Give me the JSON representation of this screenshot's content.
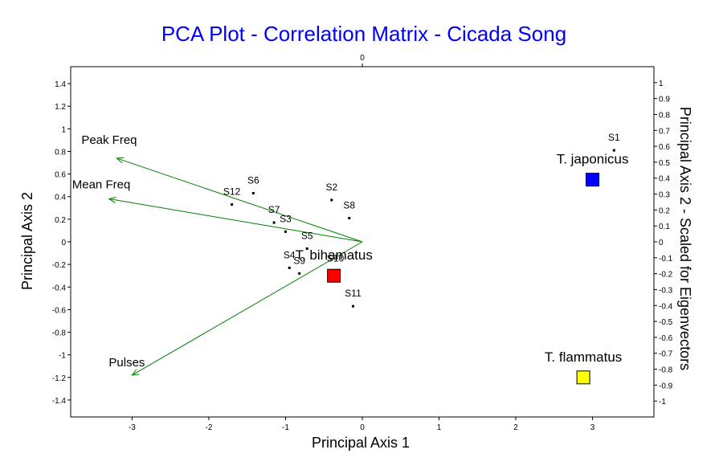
{
  "chart_data": {
    "type": "scatter",
    "title": "PCA Plot - Correlation Matrix - Cicada Song",
    "xlabel": "Principal Axis 1",
    "ylabel": "Principal Axis 2",
    "y2label": "Principal Axis 2 - Scaled for Eigenvectors",
    "xlim": [
      -3.8,
      3.8
    ],
    "ylim": [
      -1.55,
      1.55
    ],
    "y2lim": [
      -1.1,
      1.1
    ],
    "x_ticks": [
      "-3",
      "-2",
      "-1",
      "0",
      "1",
      "2",
      "3"
    ],
    "x_tick_values": [
      -3,
      -2,
      -1,
      0,
      1,
      2,
      3
    ],
    "top_ticks": [
      "0"
    ],
    "top_tick_values": [
      0
    ],
    "y_ticks": [
      "-1.4",
      "-1.2",
      "-1",
      "-0.8",
      "-0.6",
      "-0.4",
      "-0.2",
      "0",
      "0.2",
      "0.4",
      "0.6",
      "0.8",
      "1",
      "1.2",
      "1.4"
    ],
    "y_tick_values": [
      -1.4,
      -1.2,
      -1,
      -0.8,
      -0.6,
      -0.4,
      -0.2,
      0,
      0.2,
      0.4,
      0.6,
      0.8,
      1,
      1.2,
      1.4
    ],
    "y2_ticks": [
      "-1",
      "-0.9",
      "-0.8",
      "-0.7",
      "-0.6",
      "-0.5",
      "-0.4",
      "-0.3",
      "-0.2",
      "-0.1",
      "0",
      "0.1",
      "0.2",
      "0.3",
      "0.4",
      "0.5",
      "0.6",
      "0.7",
      "0.8",
      "0.9",
      "1"
    ],
    "y2_tick_values": [
      -1,
      -0.9,
      -0.8,
      -0.7,
      -0.6,
      -0.5,
      -0.4,
      -0.3,
      -0.2,
      -0.1,
      0,
      0.1,
      0.2,
      0.3,
      0.4,
      0.5,
      0.6,
      0.7,
      0.8,
      0.9,
      1
    ],
    "samples": [
      {
        "label": "S1",
        "x": 3.28,
        "y": 0.81
      },
      {
        "label": "S2",
        "x": -0.4,
        "y": 0.37
      },
      {
        "label": "S3",
        "x": -1.0,
        "y": 0.09
      },
      {
        "label": "S5",
        "x": -0.72,
        "y": -0.06
      },
      {
        "label": "S6",
        "x": -1.42,
        "y": 0.43
      },
      {
        "label": "S7",
        "x": -1.15,
        "y": 0.17
      },
      {
        "label": "S8",
        "x": -0.17,
        "y": 0.21
      },
      {
        "label": "S4",
        "x": -0.95,
        "y": -0.23
      },
      {
        "label": "S9",
        "x": -0.82,
        "y": -0.28
      },
      {
        "label": "S10",
        "x": -0.35,
        "y": -0.26
      },
      {
        "label": "S11",
        "x": -0.12,
        "y": -0.57
      },
      {
        "label": "S12",
        "x": -1.7,
        "y": 0.33
      }
    ],
    "groups": [
      {
        "name": "T. japonicus",
        "x": 3.0,
        "y": 0.55,
        "color": "#0000ff"
      },
      {
        "name": "T. bihamatus",
        "x": -0.37,
        "y": -0.3,
        "color": "#ff0000"
      },
      {
        "name": "T. flammatus",
        "x": 2.88,
        "y": -1.2,
        "color": "#ffff00"
      }
    ],
    "vectors": [
      {
        "name": "Peak Freq",
        "x": -3.2,
        "y": 0.74
      },
      {
        "name": "Mean Freq",
        "x": -3.3,
        "y": 0.38
      },
      {
        "name": "Pulses",
        "x": -3.0,
        "y": -1.18
      }
    ],
    "colors": {
      "title": "#0000ff",
      "vector": "#008000",
      "grid": "#000000"
    },
    "grid": false,
    "legend": "none"
  }
}
